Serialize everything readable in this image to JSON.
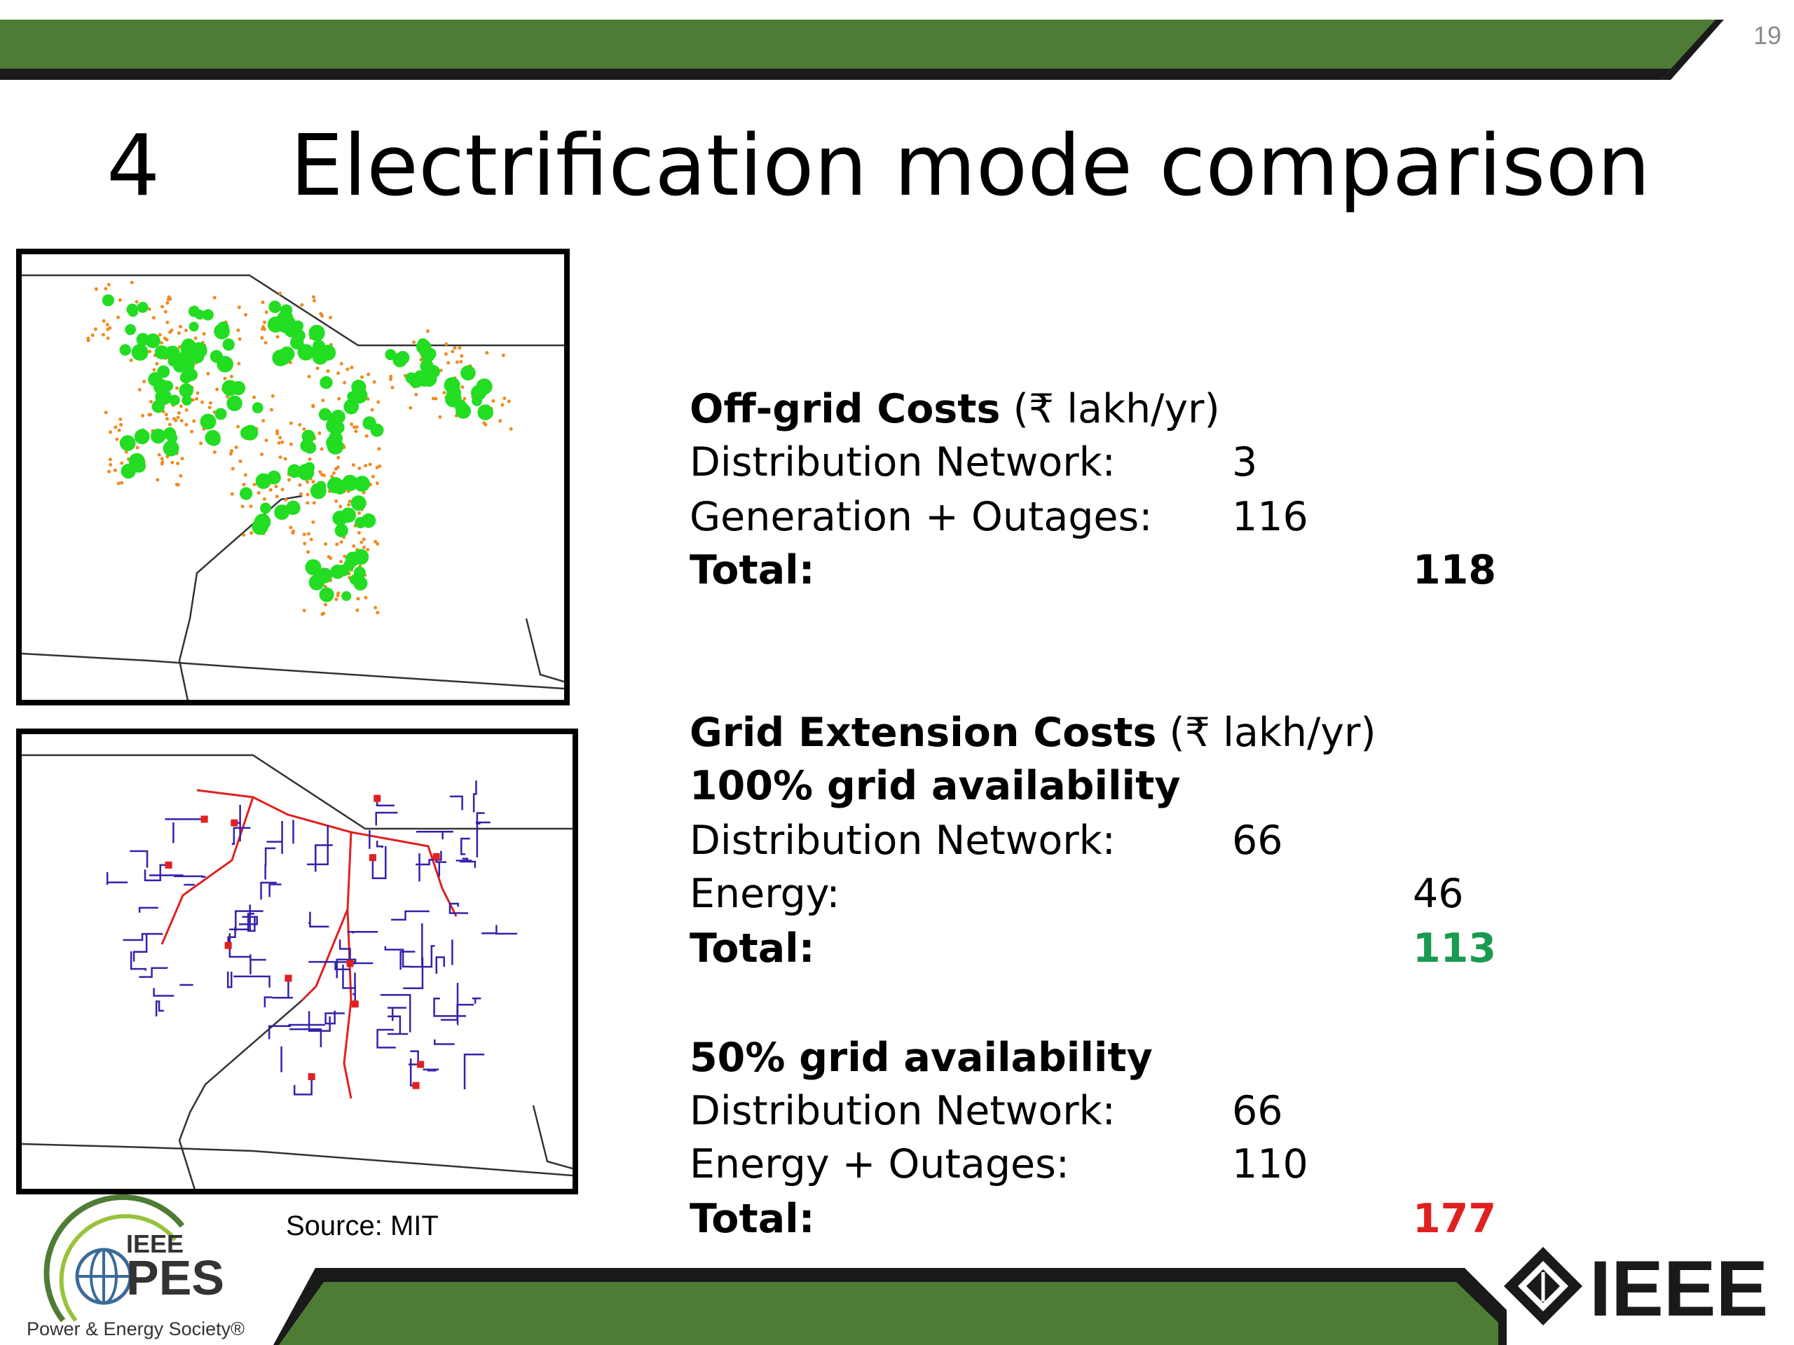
{
  "slide": {
    "page_number": "19",
    "title_number": "4",
    "title": "Electrification mode comparison",
    "source": "Source: MIT",
    "colors": {
      "banner_green": "#4e7c34",
      "banner_dark": "#1a1a1a",
      "total_green": "#1a9a50",
      "total_red": "#e02020",
      "offgrid_dot_green": "#22dd22",
      "offgrid_dot_orange": "#f08a20",
      "grid_line_blue": "#3322aa",
      "grid_line_red": "#e02020"
    }
  },
  "offgrid": {
    "heading_bold": "Off-grid Costs",
    "heading_unit": " (₹ lakh/yr)",
    "dist_label": "Distribution Network:",
    "dist_value": "3",
    "gen_label": "Generation + Outages:",
    "gen_value": "116",
    "total_label": "Total:",
    "total_value": "118"
  },
  "grid": {
    "heading_bold": "Grid Extension Costs",
    "heading_unit": " (₹ lakh/yr)",
    "full": {
      "heading": "100% grid availability",
      "dist_label": "Distribution Network:",
      "dist_value": "66",
      "energy_label": "Energy:",
      "energy_value": "46",
      "total_label": "Total:",
      "total_value": "113"
    },
    "half": {
      "heading": "50% grid availability",
      "dist_label": "Distribution Network:",
      "dist_value": "66",
      "energy_label": "Energy + Outages:",
      "energy_value": "110",
      "total_label": "Total:",
      "total_value": "177"
    }
  },
  "logos": {
    "pes_top": "IEEE",
    "pes_main": "PES",
    "pes_sub": "Power & Energy Society®",
    "ieee": "IEEE"
  }
}
